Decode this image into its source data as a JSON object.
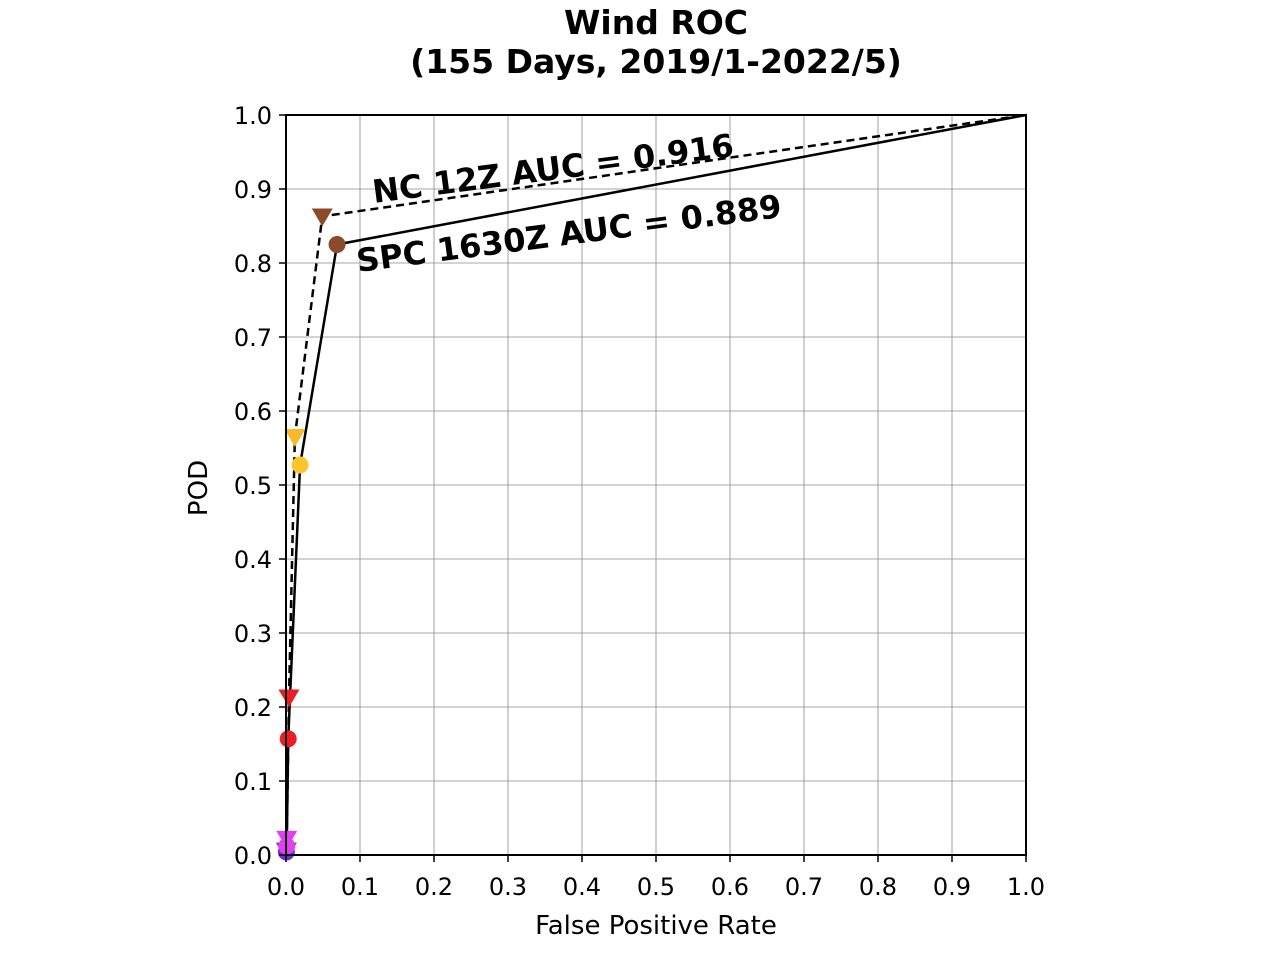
{
  "chart_data": {
    "type": "line",
    "title": "Wind ROC",
    "subtitle": "(155 Days, 2019/1-2022/5)",
    "xlabel": "False Positive Rate",
    "ylabel": "POD",
    "xlim": [
      0.0,
      1.0
    ],
    "ylim": [
      0.0,
      1.0
    ],
    "grid": true,
    "x_ticks": [
      "0.0",
      "0.1",
      "0.2",
      "0.3",
      "0.4",
      "0.5",
      "0.6",
      "0.7",
      "0.8",
      "0.9",
      "1.0"
    ],
    "y_ticks": [
      "0.0",
      "0.1",
      "0.2",
      "0.3",
      "0.4",
      "0.5",
      "0.6",
      "0.7",
      "0.8",
      "0.9",
      "1.0"
    ],
    "series": [
      {
        "label": "NC 12Z AUC = 0.916",
        "line_style": "dashed",
        "marker": "triangle-down",
        "line_color": "#000000",
        "points": [
          {
            "x": 0.0,
            "y": 0.0,
            "color": null
          },
          {
            "x": 0.0005,
            "y": 0.006,
            "color": "#6a2fd8"
          },
          {
            "x": 0.001,
            "y": 0.022,
            "color": "#e43ef2"
          },
          {
            "x": 0.004,
            "y": 0.213,
            "color": "#ee1c24"
          },
          {
            "x": 0.012,
            "y": 0.565,
            "color": "#fbb829"
          },
          {
            "x": 0.049,
            "y": 0.863,
            "color": "#8b4a2a"
          },
          {
            "x": 1.0,
            "y": 1.0,
            "color": null
          }
        ]
      },
      {
        "label": "SPC 1630Z AUC = 0.889",
        "line_style": "solid",
        "marker": "circle",
        "line_color": "#000000",
        "points": [
          {
            "x": 0.0,
            "y": 0.0,
            "color": null
          },
          {
            "x": 0.0005,
            "y": 0.004,
            "color": "#6a2fd8"
          },
          {
            "x": 0.001,
            "y": 0.012,
            "color": "#e43ef2"
          },
          {
            "x": 0.003,
            "y": 0.157,
            "color": "#ee1c24"
          },
          {
            "x": 0.019,
            "y": 0.527,
            "color": "#fbc62c"
          },
          {
            "x": 0.069,
            "y": 0.825,
            "color": "#8b4a2a"
          },
          {
            "x": 1.0,
            "y": 1.0,
            "color": null
          }
        ]
      }
    ]
  }
}
